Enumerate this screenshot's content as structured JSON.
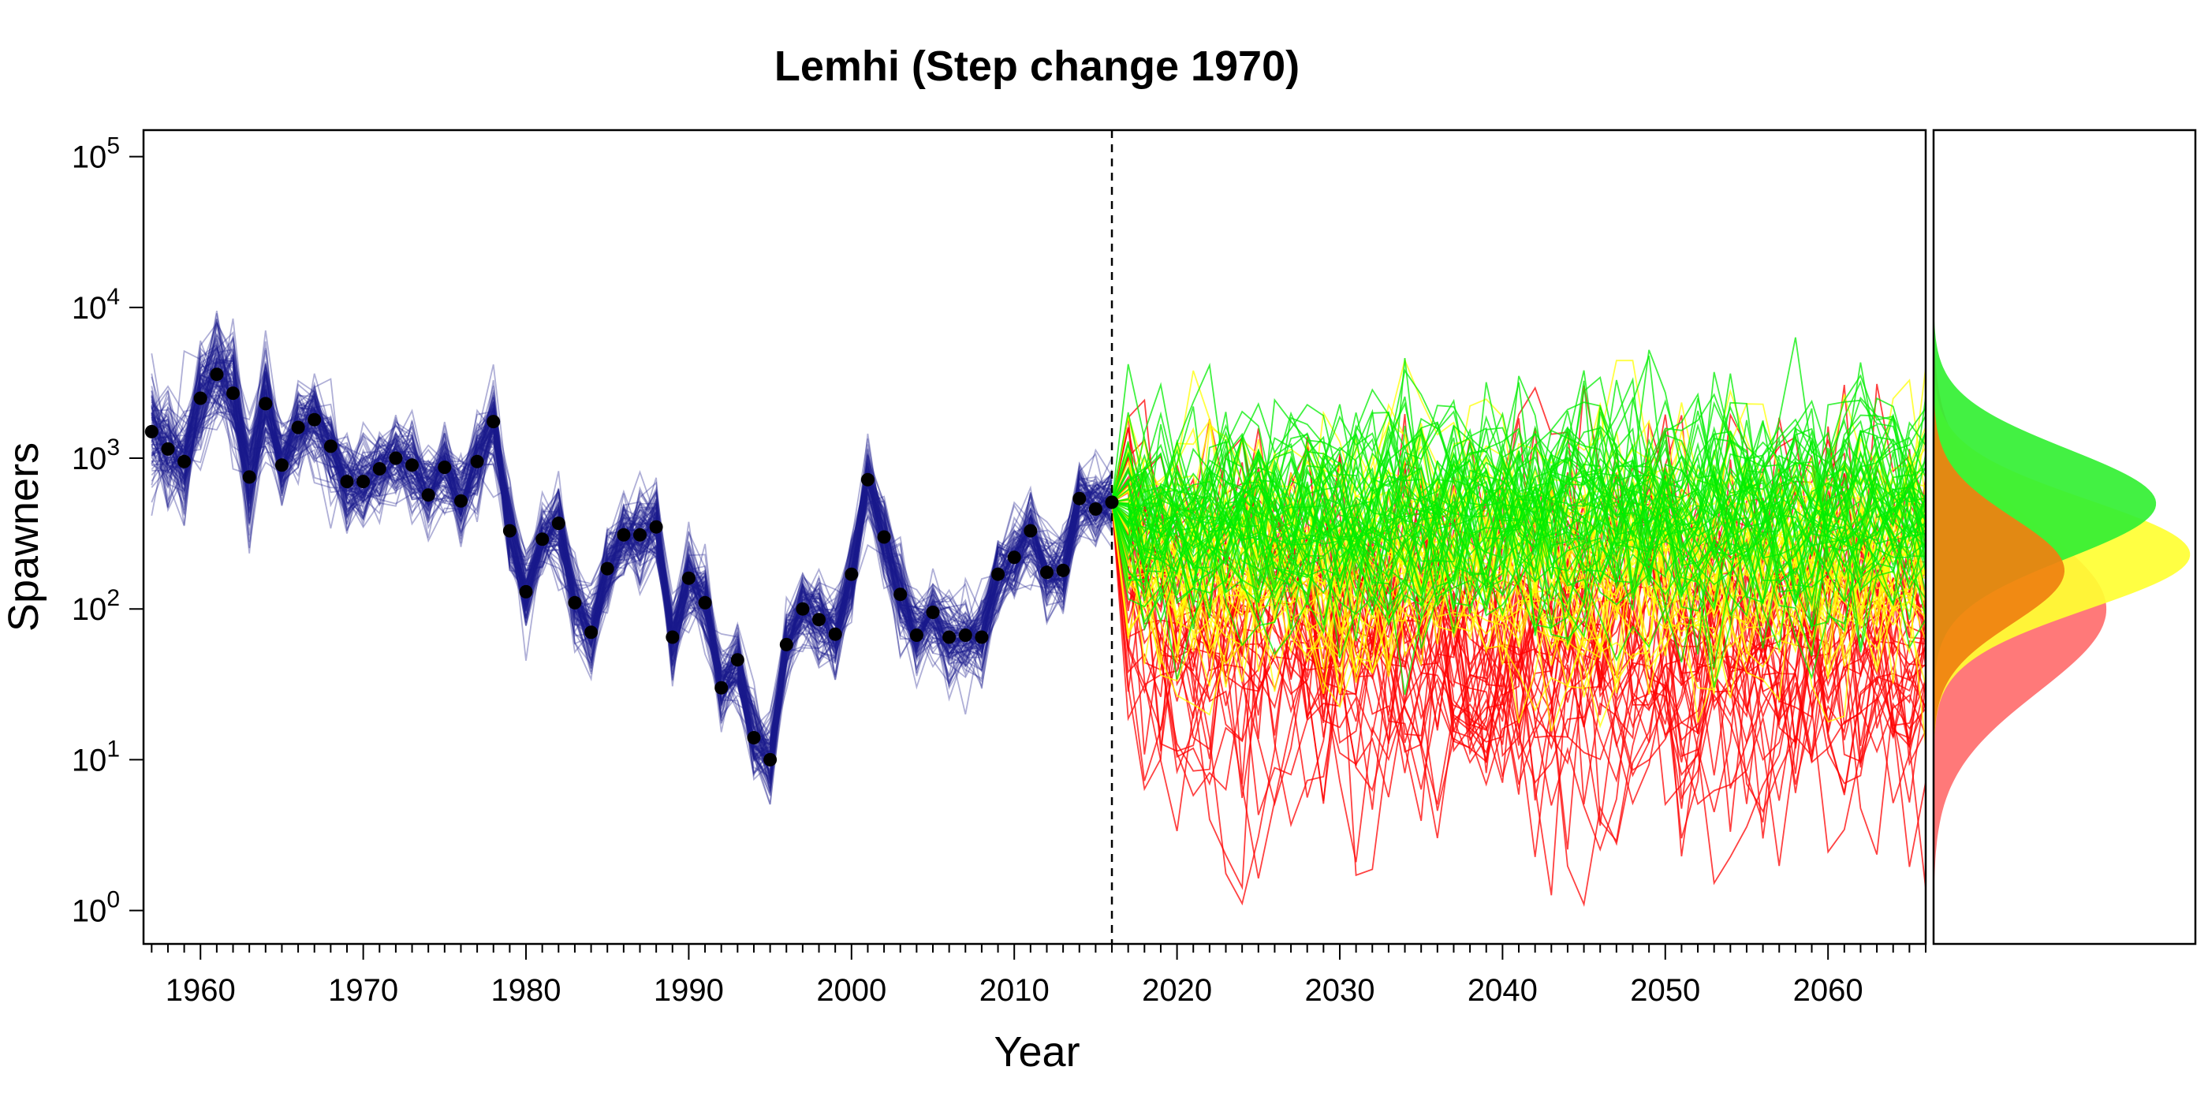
{
  "chart_data": {
    "type": "line",
    "title": "Lemhi (Step change 1970)",
    "xlabel": "Year",
    "ylabel": "Spawners",
    "y_scale": "log10",
    "xlim": [
      1956.5,
      2066
    ],
    "ylim": [
      0.6,
      150000
    ],
    "x_ticks": [
      "1960",
      "1970",
      "1980",
      "1990",
      "2000",
      "2010",
      "2020",
      "2030",
      "2040",
      "2050",
      "2060"
    ],
    "y_ticks": [
      {
        "base": "10",
        "exp": "0",
        "value": 1
      },
      {
        "base": "10",
        "exp": "1",
        "value": 10
      },
      {
        "base": "10",
        "exp": "2",
        "value": 100
      },
      {
        "base": "10",
        "exp": "3",
        "value": 1000
      },
      {
        "base": "10",
        "exp": "4",
        "value": 10000
      },
      {
        "base": "10",
        "exp": "5",
        "value": 100000
      }
    ],
    "forecast_start_year": 2016,
    "observed": {
      "x": [
        1957,
        1958,
        1959,
        1960,
        1961,
        1962,
        1963,
        1964,
        1965,
        1966,
        1967,
        1968,
        1969,
        1970,
        1971,
        1972,
        1973,
        1974,
        1975,
        1976,
        1977,
        1978,
        1979,
        1980,
        1981,
        1982,
        1983,
        1984,
        1985,
        1986,
        1987,
        1988,
        1989,
        1990,
        1991,
        1992,
        1993,
        1994,
        1995,
        1996,
        1997,
        1998,
        1999,
        2000,
        2001,
        2002,
        2003,
        2004,
        2005,
        2006,
        2007,
        2008,
        2009,
        2010,
        2011,
        2012,
        2013,
        2014,
        2015,
        2016
      ],
      "y": [
        1500,
        1150,
        950,
        2500,
        3600,
        2700,
        750,
        2300,
        900,
        1600,
        1800,
        1200,
        700,
        700,
        850,
        1000,
        900,
        570,
        870,
        520,
        950,
        1750,
        330,
        130,
        290,
        370,
        110,
        70,
        185,
        310,
        310,
        350,
        65,
        160,
        110,
        30,
        46,
        14,
        10,
        58,
        100,
        85,
        68,
        170,
        720,
        300,
        125,
        67,
        95,
        65,
        67,
        65,
        170,
        220,
        330,
        175,
        180,
        540,
        460,
        510
      ]
    },
    "historical_fits": {
      "color": "#1a1a8c",
      "count": 100
    },
    "scenarios": [
      {
        "color": "#ff0000",
        "median": 70,
        "spread_sd_log10": 0.62,
        "count": 40
      },
      {
        "color": "#ffff00",
        "median": 230,
        "spread_sd_log10": 0.42,
        "count": 40
      },
      {
        "color": "#00ee00",
        "median": 420,
        "spread_sd_log10": 0.4,
        "count": 50
      }
    ],
    "density_panel": [
      {
        "color": "#ff6e6e",
        "mode": 100,
        "sd_log10": 0.55,
        "max_width_frac": 0.66
      },
      {
        "color": "#ffff33",
        "mode": 230,
        "sd_log10": 0.36,
        "max_width_frac": 0.98
      },
      {
        "color": "#33f033",
        "mode": 500,
        "sd_log10": 0.36,
        "max_width_frac": 0.85
      },
      {
        "color": "#f08010",
        "mode": 180,
        "sd_log10": 0.35,
        "max_width_frac": 0.5
      }
    ]
  }
}
